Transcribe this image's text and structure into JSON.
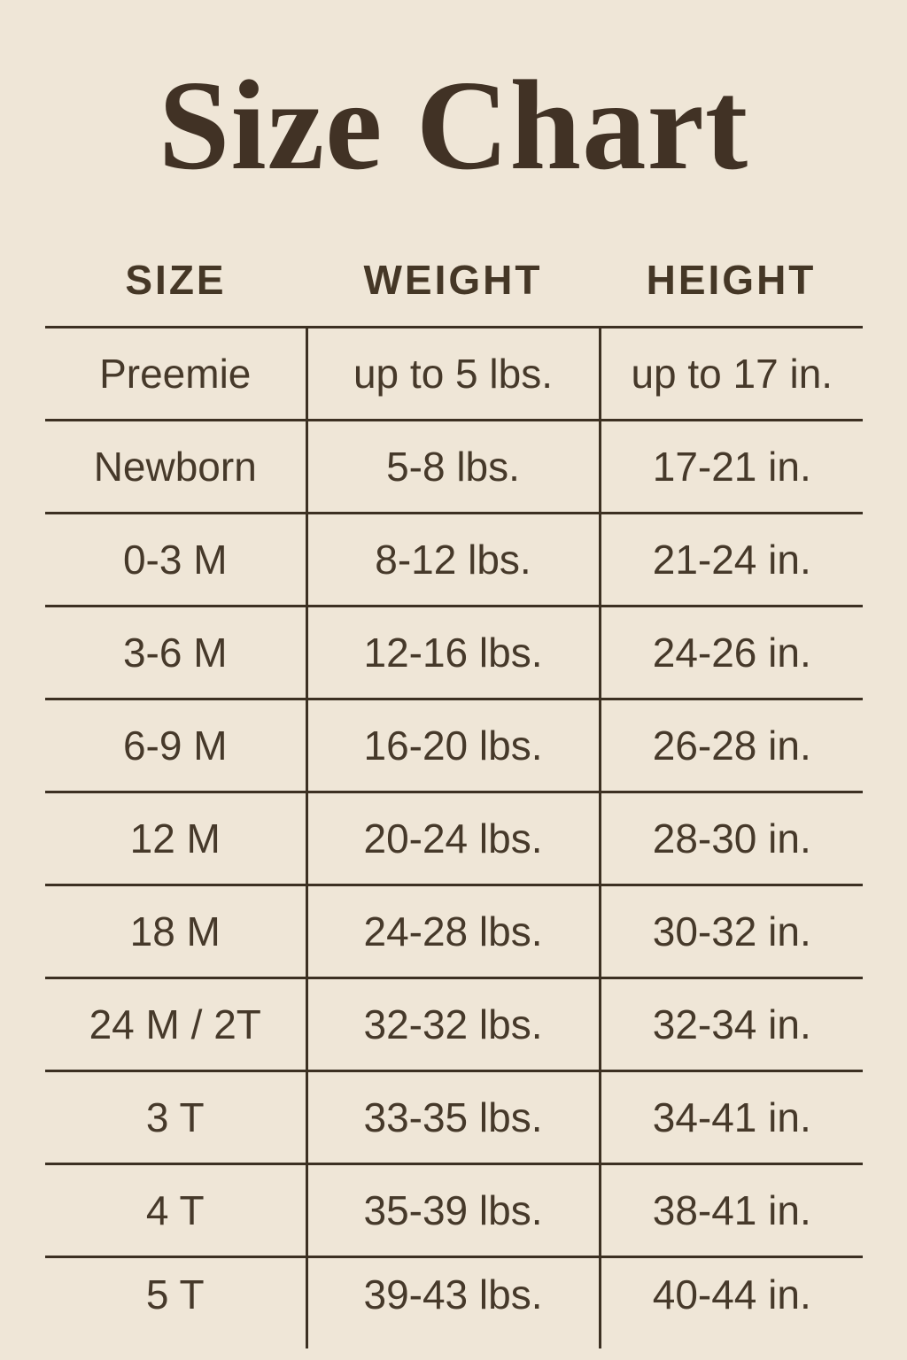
{
  "page": {
    "background_color": "#efe6d7",
    "text_color": "#46392a",
    "line_color": "#3c3022",
    "title_color": "#413225"
  },
  "title": "Size Chart",
  "table": {
    "headers": [
      "SIZE",
      "WEIGHT",
      "HEIGHT"
    ],
    "rows": [
      [
        "Preemie",
        "up to 5 lbs.",
        "up to 17 in."
      ],
      [
        "Newborn",
        "5-8 lbs.",
        "17-21 in."
      ],
      [
        "0-3 M",
        "8-12 lbs.",
        "21-24 in."
      ],
      [
        "3-6 M",
        "12-16 lbs.",
        "24-26 in."
      ],
      [
        "6-9 M",
        "16-20 lbs.",
        "26-28 in."
      ],
      [
        "12 M",
        "20-24 lbs.",
        "28-30 in."
      ],
      [
        "18 M",
        "24-28 lbs.",
        "30-32 in."
      ],
      [
        "24 M / 2T",
        "32-32 lbs.",
        "32-34 in."
      ],
      [
        "3 T",
        "33-35 lbs.",
        "34-41 in."
      ],
      [
        "4 T",
        "35-39 lbs.",
        "38-41 in."
      ],
      [
        "5 T",
        "39-43 lbs.",
        "40-44 in."
      ]
    ]
  }
}
